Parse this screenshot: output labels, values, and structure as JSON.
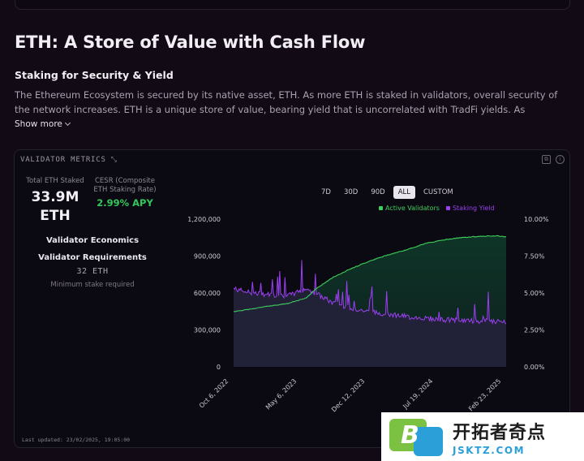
{
  "page": {
    "title": "ETH: A Store of Value with Cash Flow",
    "section_title": "Staking for Security & Yield",
    "description": "The Ethereum Ecosystem is secured by its native asset, ETH. As more ETH is staked in validators, overall security of the network increases. ETH is a unique store of value, bearing yield that is uncorrelated with TradFi yields. As economic...",
    "show_more": "Show more"
  },
  "card": {
    "header": "VALIDATOR METRICS",
    "stats": {
      "staked_label": "Total ETH Staked",
      "staked_value_line1": "33.9M",
      "staked_value_line2": "ETH",
      "cesr_label_line1": "CESR (Composite",
      "cesr_label_line2": "ETH Staking Rate)",
      "cesr_value": "2.99% APY"
    },
    "economics_title": "Validator Economics",
    "requirements_title": "Validator Requirements",
    "requirements_value": "32 ETH",
    "requirements_note": "Minimum stake required",
    "range_tabs": [
      "7D",
      "30D",
      "90D",
      "ALL",
      "CUSTOM"
    ],
    "range_selected": "ALL",
    "footer": "Last updated: 23/02/2025, 19:05:00"
  },
  "chart_data": {
    "type": "area",
    "left_axis": {
      "ticks": [
        "1,200,000",
        "900,000",
        "600,000",
        "300,000",
        "0"
      ],
      "range": [
        0,
        1200000
      ]
    },
    "right_axis": {
      "ticks": [
        "10.00%",
        "7.50%",
        "5.00%",
        "2.50%",
        "0.00%"
      ],
      "range": [
        0,
        10
      ]
    },
    "x_ticks": [
      "Oct 6, 2022",
      "May 6, 2023",
      "Dec 12, 2023",
      "Jul 19, 2024",
      "Feb 23, 2025"
    ],
    "series": [
      {
        "name": "Active Validators",
        "color": "#3ecf5a",
        "axis": "left",
        "x": [
          "2022-08",
          "2022-10",
          "2022-12",
          "2023-02",
          "2023-04",
          "2023-05",
          "2023-07",
          "2023-09",
          "2023-11",
          "2024-01",
          "2024-03",
          "2024-05",
          "2024-07",
          "2024-09",
          "2024-11",
          "2025-01",
          "2025-02"
        ],
        "values": [
          450000,
          470000,
          495000,
          515000,
          560000,
          630000,
          730000,
          800000,
          860000,
          910000,
          950000,
          1000000,
          1030000,
          1050000,
          1060000,
          1065000,
          1055000
        ]
      },
      {
        "name": "Staking Yield",
        "color": "#9b3ff0",
        "axis": "right",
        "x": [
          "2022-08",
          "2022-10",
          "2022-12",
          "2023-02",
          "2023-04",
          "2023-05",
          "2023-07",
          "2023-09",
          "2023-11",
          "2024-01",
          "2024-03",
          "2024-05",
          "2024-07",
          "2024-09",
          "2024-11",
          "2025-01",
          "2025-02"
        ],
        "values": [
          5.3,
          5.0,
          4.9,
          4.8,
          5.3,
          5.0,
          4.3,
          4.0,
          3.7,
          3.6,
          3.4,
          3.3,
          3.2,
          3.15,
          3.1,
          3.05,
          3.0
        ]
      }
    ]
  },
  "logo": {
    "cn": "开拓者奇点",
    "en": "JSKTZ.COM",
    "mark_letter": "B",
    "colors": {
      "green": "#7cc242",
      "blue": "#2a9fd8"
    }
  }
}
